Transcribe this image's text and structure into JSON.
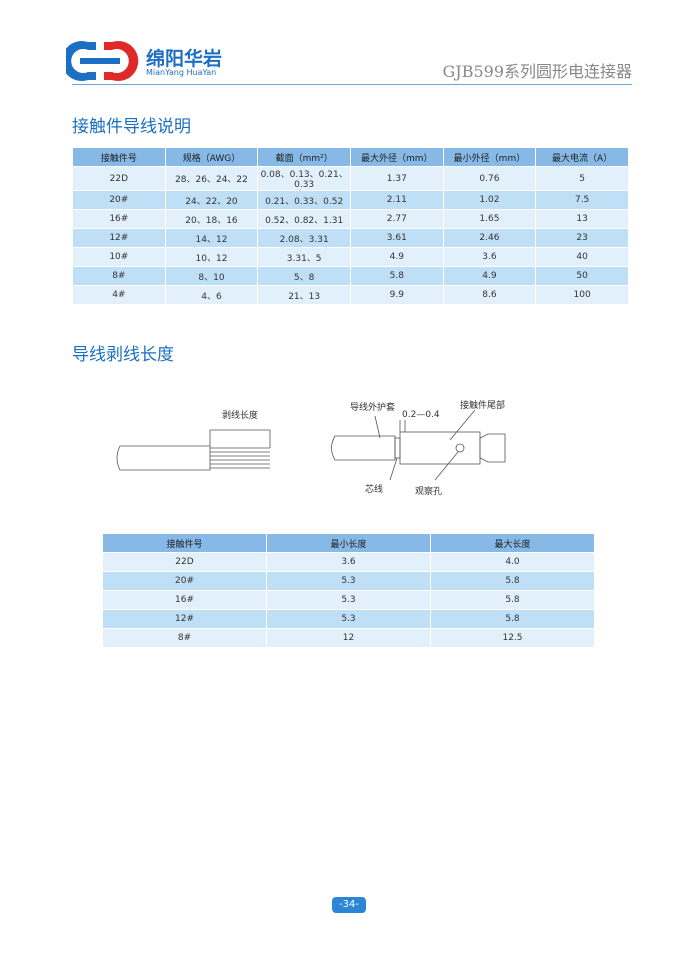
{
  "header": {
    "company_cn": "绵阳华岩",
    "company_en": "MianYang HuaYan",
    "product": "GJB599系列圆形电连接器"
  },
  "section1": {
    "title": "接触件导线说明",
    "table": {
      "columns": [
        "接触件号",
        "规格（AWG）",
        "截面（mm²）",
        "最大外径（mm）",
        "最小外径（mm）",
        "最大电流（A）"
      ],
      "rows": [
        [
          "22D",
          "28、26、24、22",
          "0.08、0.13、0.21、0.33",
          "1.37",
          "0.76",
          "5"
        ],
        [
          "20#",
          "24、22、20",
          "0.21、0.33、0.52",
          "2.11",
          "1.02",
          "7.5"
        ],
        [
          "16#",
          "20、18、16",
          "0.52、0.82、1.31",
          "2.77",
          "1.65",
          "13"
        ],
        [
          "12#",
          "14、12",
          "2.08、3.31",
          "3.61",
          "2.46",
          "23"
        ],
        [
          "10#",
          "10、12",
          "3.31、5",
          "4.9",
          "3.6",
          "40"
        ],
        [
          "8#",
          "8、10",
          "5、8",
          "5.8",
          "4.9",
          "50"
        ],
        [
          "4#",
          "4、6",
          "21、13",
          "9.9",
          "8.6",
          "100"
        ]
      ]
    }
  },
  "section2": {
    "title": "导线剥线长度",
    "diagram": {
      "strip_length": "剥线长度",
      "jacket": "导线外护套",
      "gap": "0.2—0.4",
      "contact_tail": "接触件尾部",
      "core": "芯线",
      "hole": "观察孔"
    },
    "table": {
      "columns": [
        "接触件号",
        "最小长度",
        "最大长度"
      ],
      "rows": [
        [
          "22D",
          "3.6",
          "4.0"
        ],
        [
          "20#",
          "5.3",
          "5.8"
        ],
        [
          "16#",
          "5.3",
          "5.8"
        ],
        [
          "12#",
          "5.3",
          "5.8"
        ],
        [
          "8#",
          "12",
          "12.5"
        ]
      ]
    }
  },
  "footer": {
    "page": "-34-"
  }
}
